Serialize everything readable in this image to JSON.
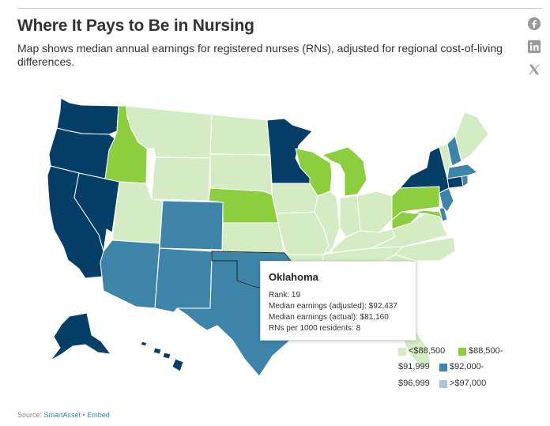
{
  "header": {
    "title": "Where It Pays to Be in Nursing",
    "subtitle": "Map shows median annual earnings for registered nurses (RNs), adjusted for regional cost-of-living differences."
  },
  "share": {
    "icons": [
      "facebook-icon",
      "linkedin-icon",
      "x-icon"
    ]
  },
  "colors": {
    "tier1": "#d4ebc4",
    "tier2": "#8cce3d",
    "tier3": "#3d85a8",
    "tier4": "#053e67",
    "tier5": "#a9c4d4"
  },
  "map": {
    "states": {
      "WA": "tier4",
      "OR": "tier4",
      "CA": "tier4",
      "NV": "tier4",
      "ID": "tier2",
      "MT": "tier1",
      "WY": "tier1",
      "UT": "tier1",
      "AZ": "tier3",
      "CO": "tier3",
      "NM": "tier3",
      "ND": "tier1",
      "SD": "tier1",
      "NE": "tier2",
      "KS": "tier1",
      "OK": "tier3",
      "TX": "tier3",
      "MN": "tier4",
      "IA": "tier1",
      "MO": "tier1",
      "AR": "tier1",
      "LA": "tier1",
      "WI": "tier2",
      "IL": "tier1",
      "MI": "tier2",
      "IN": "tier1",
      "OH": "tier1",
      "KY": "tier1",
      "TN": "tier1",
      "MS": "tier1",
      "AL": "tier1",
      "GA": "tier1",
      "FL": "tier1",
      "SC": "tier1",
      "NC": "tier1",
      "VA": "tier1",
      "WV": "tier2",
      "MD": "tier2",
      "DE": "tier3",
      "NJ": "tier3",
      "PA": "tier2",
      "NY": "tier4",
      "CT": "tier4",
      "RI": "tier3",
      "MA": "tier3",
      "VT": "tier1",
      "NH": "tier3",
      "ME": "tier1",
      "AK": "tier4",
      "HI": "tier4"
    }
  },
  "tooltip": {
    "state": "Oklahoma",
    "rank": "Rank: 19",
    "adjusted": "Median earnings (adjusted): $92,437",
    "actual": "Median earnings (actual): $81,160",
    "rns": "RNs per 1000 residents: 8"
  },
  "legend": {
    "items": [
      {
        "label_a": "<$88,500",
        "color": "#d4ebc4"
      },
      {
        "label_a": "$88,500-",
        "label_b": "$91,999",
        "color": "#8cce3d"
      },
      {
        "label_a": "$92,000-",
        "label_b": "$96,999",
        "color": "#3d85a8"
      },
      {
        "label_a": ">$97,000",
        "color": "#a9c4d4"
      }
    ]
  },
  "footer": {
    "source_prefix": "Source: ",
    "source_link": "SmartAsset",
    "separator": " • ",
    "embed_link": "Embed"
  }
}
